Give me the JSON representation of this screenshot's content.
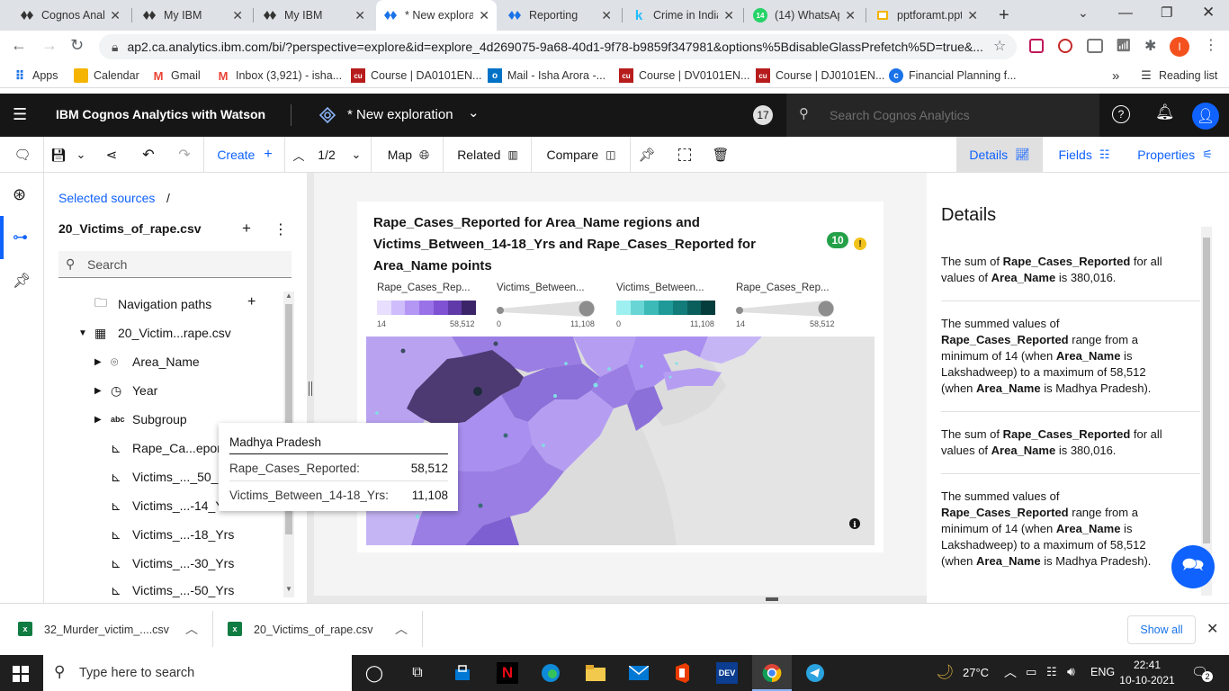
{
  "browser": {
    "tabs": [
      {
        "title": "Cognos Analy",
        "icon": "cognos-icon"
      },
      {
        "title": "My IBM",
        "icon": "cognos-icon"
      },
      {
        "title": "My IBM",
        "icon": "cognos-icon"
      },
      {
        "title": "* New explora",
        "icon": "cognos-icon",
        "active": true
      },
      {
        "title": "Reporting",
        "icon": "reporting-icon"
      },
      {
        "title": "Crime in India",
        "icon": "kaggle-icon"
      },
      {
        "title": "(14) WhatsAp",
        "icon": "whatsapp-icon",
        "badge": "14"
      },
      {
        "title": "pptforamt.ppt",
        "icon": "slides-icon"
      }
    ],
    "url": "ap2.ca.analytics.ibm.com/bi/?perspective=explore&id=explore_4d269075-9a68-40d1-9f78-b9859f347981&options%5BdisableGlassPrefetch%5D=true&...",
    "profile_initial": "I",
    "bookmarks": [
      {
        "label": "Apps",
        "icon": "apps-grid-icon"
      },
      {
        "label": "Calendar",
        "icon": "calendar-icon"
      },
      {
        "label": "Gmail",
        "icon": "gmail-icon"
      },
      {
        "label": "Inbox (3,921) - isha...",
        "icon": "gmail-icon"
      },
      {
        "label": "Course | DA0101EN...",
        "icon": "course-icon"
      },
      {
        "label": "Mail - Isha Arora -...",
        "icon": "outlook-icon"
      },
      {
        "label": "Course | DV0101EN...",
        "icon": "course-icon"
      },
      {
        "label": "Course | DJ0101EN...",
        "icon": "course-icon"
      },
      {
        "label": "Financial Planning f...",
        "icon": "globe-icon"
      }
    ],
    "more_bookmarks": "»",
    "reading_list": "Reading list"
  },
  "header": {
    "app_title": "IBM Cognos Analytics with Watson",
    "exploration_title": "* New exploration",
    "notification_count": "17",
    "search_placeholder": "Search Cognos Analytics"
  },
  "toolbar": {
    "create": "Create",
    "page_indicator": "1/2",
    "map": "Map",
    "related": "Related",
    "compare": "Compare",
    "details_tab": "Details",
    "fields_tab": "Fields",
    "properties_tab": "Properties"
  },
  "sources": {
    "breadcrumb": "Selected sources",
    "breadcrumb_sep": "/",
    "file_name": "20_Victims_of_rape.csv",
    "search_placeholder": "Search",
    "tree": [
      {
        "label": "Navigation paths",
        "icon": "folder-icon"
      },
      {
        "label": "20_Victim...rape.csv",
        "icon": "table-icon"
      },
      {
        "label": "Area_Name",
        "icon": "location-icon"
      },
      {
        "label": "Year",
        "icon": "clock-icon"
      },
      {
        "label": "Subgroup",
        "icon": "abc-icon"
      },
      {
        "label": "Rape_Ca...eported",
        "icon": "measure-icon"
      },
      {
        "label": "Victims_..._50_Yrs",
        "icon": "measure-icon"
      },
      {
        "label": "Victims_...-14_Yrs",
        "icon": "measure-icon"
      },
      {
        "label": "Victims_...-18_Yrs",
        "icon": "measure-icon"
      },
      {
        "label": "Victims_...-30_Yrs",
        "icon": "measure-icon"
      },
      {
        "label": "Victims_...-50_Yrs",
        "icon": "measure-icon"
      }
    ]
  },
  "visualization": {
    "title_line1": "Rape_Cases_Reported for Area_Name regions and",
    "title_line2": "Victims_Between_14-18_Yrs and Rape_Cases_Reported for",
    "title_line3": "Area_Name points",
    "insights_badge": "10",
    "legends": [
      {
        "label": "Rape_Cases_Rep...",
        "min": "14",
        "max": "58,512",
        "kind": "color-steps",
        "colors": [
          "#e8deff",
          "#cfbcfb",
          "#b496f4",
          "#9a72e8",
          "#7e52d2",
          "#5f3aa8",
          "#3c2468"
        ]
      },
      {
        "label": "Victims_Between...",
        "min": "0",
        "max": "11,108",
        "kind": "size"
      },
      {
        "label": "Victims_Between...",
        "min": "0",
        "max": "11,108",
        "kind": "color-steps",
        "colors": [
          "#9ef0f0",
          "#6ad5d5",
          "#3bbab8",
          "#1f9a98",
          "#127c7a",
          "#0a5e5c",
          "#053d3c"
        ]
      },
      {
        "label": "Rape_Cases_Rep...",
        "min": "14",
        "max": "58,512",
        "kind": "size"
      }
    ],
    "tooltip": {
      "region": "Madhya Pradesh",
      "rows": [
        {
          "label": "Rape_Cases_Reported:",
          "value": "58,512"
        },
        {
          "label": "Victims_Between_14-18_Yrs:",
          "value": "11,108"
        }
      ]
    }
  },
  "details": {
    "heading": "Details",
    "insight_1": {
      "pre": "The sum of ",
      "measure": "Rape_Cases_Reported",
      "mid": " for all values of ",
      "dim": "Area_Name",
      "post": " is 380,016."
    },
    "insight_2": {
      "pre": "The summed values of ",
      "measure": "Rape_Cases_Reported",
      "mid1": " range from a minimum of 14 (when ",
      "dim1": "Area_Name",
      "mid2": " is Lakshadweep) to a maximum of 58,512 (when ",
      "dim2": "Area_Name",
      "post": " is Madhya Pradesh)."
    }
  },
  "downloads": [
    {
      "name": "32_Murder_victim_....csv",
      "icon": "excel-icon"
    },
    {
      "name": "20_Victims_of_rape.csv",
      "icon": "excel-icon"
    }
  ],
  "show_all": "Show all",
  "taskbar": {
    "search_placeholder": "Type here to search",
    "temperature": "27°C",
    "language": "ENG",
    "time": "22:41",
    "date": "10-10-2021",
    "notifications": "2"
  }
}
